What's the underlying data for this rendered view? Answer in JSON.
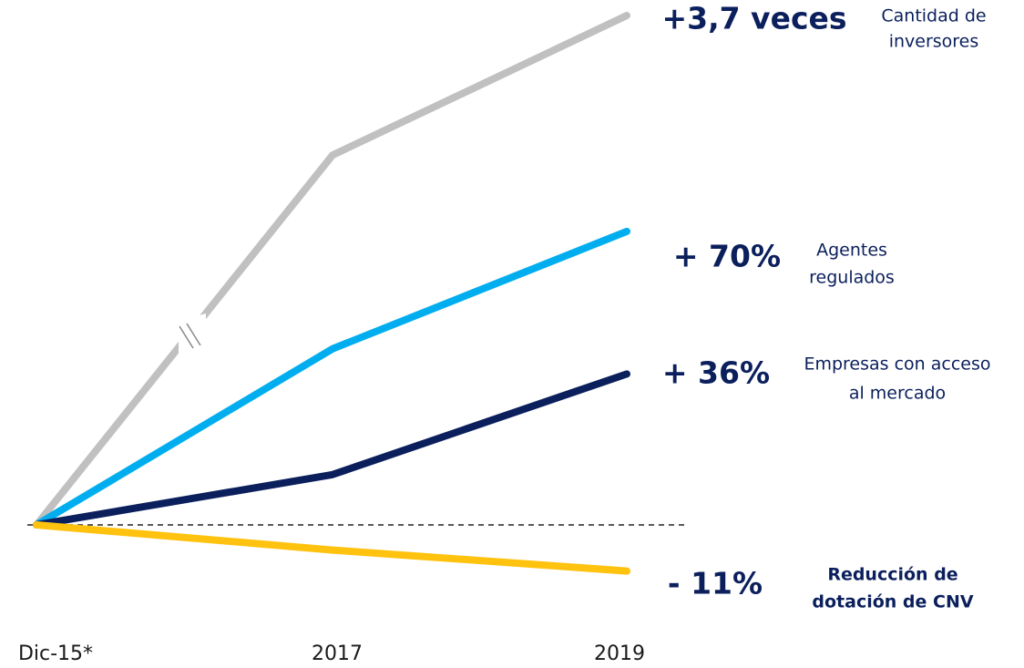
{
  "chart_data": {
    "type": "line",
    "categories": [
      "Dic-15*",
      "2017",
      "2019"
    ],
    "ylim": [
      -20,
      121.5
    ],
    "y2lim": [
      -44.4,
      270
    ],
    "series": [
      {
        "name": "Cantidad de inversores",
        "label_lines": [
          "Cantidad de",
          "inversores"
        ],
        "change": "+3,7 veces",
        "color": "#c0c0c0",
        "axis": "y2",
        "values": [
          0,
          196,
          270
        ]
      },
      {
        "name": "Agentes regulados",
        "label_lines": [
          "Agentes",
          "regulados"
        ],
        "change": "+ 70%",
        "color": "#00aeef",
        "values": [
          0,
          42,
          70
        ]
      },
      {
        "name": "Empresas con acceso al mercado",
        "label_lines": [
          "Empresas con acceso",
          "al mercado"
        ],
        "change": "+ 36%",
        "color": "#0a1f5c",
        "values": [
          0,
          12,
          36
        ]
      },
      {
        "name": "Reducción de dotación de CNV",
        "label_lines": [
          "Reducción de",
          "dotación de CNV"
        ],
        "change": "- 11%",
        "color": "#ffc20e",
        "values": [
          0,
          -6,
          -11
        ]
      }
    ]
  }
}
